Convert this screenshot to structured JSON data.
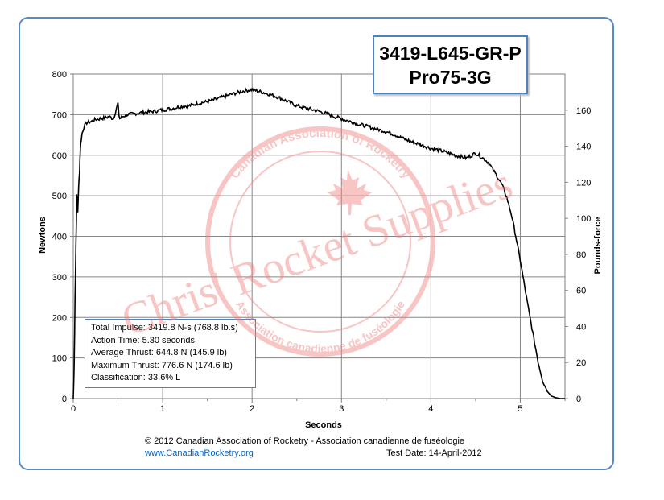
{
  "chart_data": {
    "type": "line",
    "title": "3419-L645-GR-P",
    "subtitle": "Pro75-3G",
    "xlabel": "Seconds",
    "ylabel": "Newtons",
    "y2label": "Pounds-force",
    "xlim": [
      0,
      5.5
    ],
    "ylim": [
      0,
      800
    ],
    "y2lim": [
      0,
      180
    ],
    "x_ticks": [
      0,
      1,
      2,
      3,
      4,
      5
    ],
    "y_ticks": [
      0,
      100,
      200,
      300,
      400,
      500,
      600,
      700,
      800
    ],
    "y2_ticks": [
      0,
      20,
      40,
      60,
      80,
      100,
      120,
      140,
      160
    ],
    "grid": true,
    "line_color": "#000000",
    "series": [
      {
        "x": [
          0,
          0.01,
          0.02,
          0.03,
          0.04,
          0.05,
          0.06,
          0.07,
          0.08,
          0.09,
          0.1,
          0.12,
          0.15,
          0.2,
          0.25,
          0.3,
          0.35,
          0.4,
          0.45,
          0.5,
          0.51,
          0.52,
          0.55,
          0.6,
          0.7,
          0.8,
          0.9,
          1.0,
          1.1,
          1.2,
          1.3,
          1.4,
          1.5,
          1.6,
          1.7,
          1.8,
          1.9,
          2.0,
          2.1,
          2.2,
          2.3,
          2.4,
          2.5,
          2.6,
          2.7,
          2.8,
          2.9,
          3.0,
          3.1,
          3.2,
          3.3,
          3.4,
          3.5,
          3.6,
          3.7,
          3.8,
          3.9,
          4.0,
          4.1,
          4.2,
          4.3,
          4.4,
          4.5,
          4.55,
          4.6,
          4.65,
          4.7,
          4.75,
          4.8,
          4.85,
          4.9,
          4.95,
          5.0,
          5.05,
          5.1,
          5.15,
          5.2,
          5.25,
          5.3,
          5.35,
          5.4,
          5.45,
          5.5
        ],
        "y": [
          0,
          80,
          250,
          380,
          500,
          460,
          520,
          560,
          620,
          640,
          655,
          670,
          680,
          683,
          688,
          690,
          692,
          695,
          690,
          728,
          700,
          690,
          695,
          700,
          703,
          706,
          708,
          712,
          715,
          720,
          722,
          728,
          732,
          738,
          745,
          752,
          758,
          762,
          756,
          750,
          742,
          732,
          722,
          716,
          711,
          705,
          697,
          690,
          683,
          676,
          670,
          664,
          658,
          650,
          640,
          632,
          625,
          617,
          612,
          605,
          598,
          593,
          605,
          598,
          590,
          580,
          562,
          545,
          525,
          495,
          455,
          400,
          340,
          275,
          210,
          150,
          90,
          45,
          18,
          6,
          2,
          0,
          0
        ]
      }
    ]
  },
  "stats": {
    "total_impulse": "Total Impulse: 3419.8 N-s (768.8 lb.s)",
    "action_time": "Action Time: 5.30 seconds",
    "average_thrust": "Average Thrust: 644.8 N (145.9 lb)",
    "maximum_thrust": "Maximum Thrust: 776.6 N (174.6 lb)",
    "classification": "Classification: 33.6% L"
  },
  "footer": {
    "copyright": "© 2012 Canadian Association of Rocketry - Association canadienne de fuséologie",
    "link": "www.CanadianRocketry.org",
    "test_date": "Test  Date: 14-April-2012"
  },
  "watermark": {
    "text": "Chris' Rocket Supplies",
    "seal_top": "Canadian Association of Rocketry",
    "seal_bottom": "Association canadienne de fuséologie",
    "color": "#f08080"
  }
}
